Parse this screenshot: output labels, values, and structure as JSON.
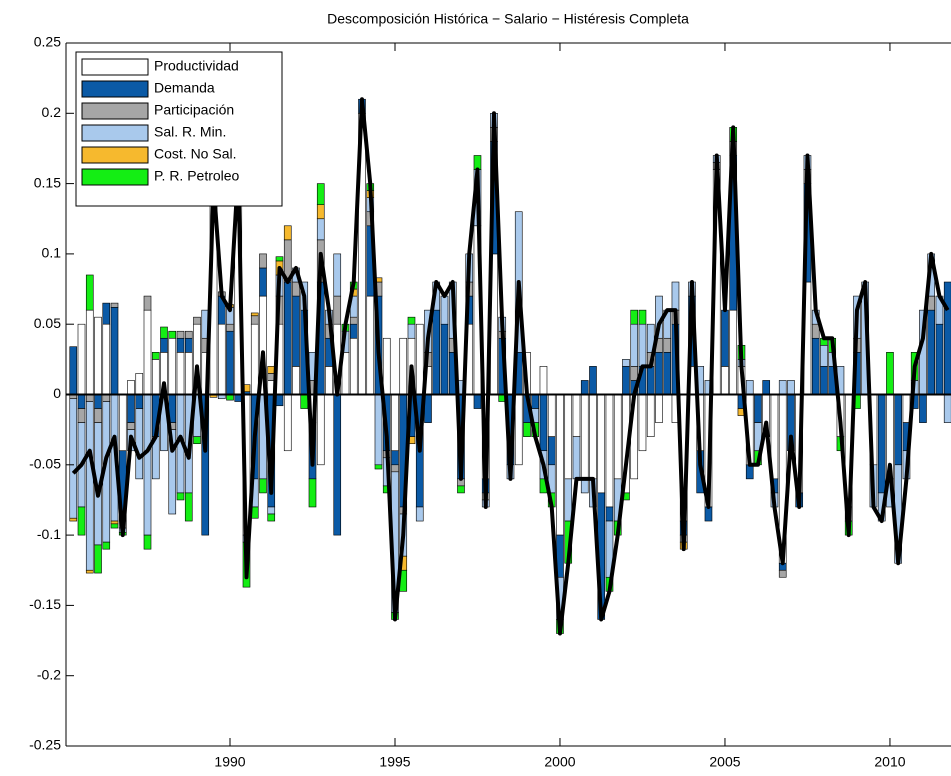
{
  "chart_data": {
    "type": "stacked-bar-line",
    "title": "Descomposición Histórica − Salario − Histéresis Completa",
    "x": [
      1985.25,
      1985.5,
      1985.75,
      1986,
      1986.25,
      1986.5,
      1986.75,
      1987,
      1987.25,
      1987.5,
      1987.75,
      1988,
      1988.25,
      1988.5,
      1988.75,
      1989,
      1989.25,
      1989.5,
      1989.75,
      1990,
      1990.25,
      1990.5,
      1990.75,
      1991,
      1991.25,
      1991.5,
      1991.75,
      1992,
      1992.25,
      1992.5,
      1992.75,
      1993,
      1993.25,
      1993.5,
      1993.75,
      1994,
      1994.25,
      1994.5,
      1994.75,
      1995,
      1995.25,
      1995.5,
      1995.75,
      1996,
      1996.25,
      1996.5,
      1996.75,
      1997,
      1997.25,
      1997.5,
      1997.75,
      1998,
      1998.25,
      1998.5,
      1998.75,
      1999,
      1999.25,
      1999.5,
      1999.75,
      2000,
      2000.25,
      2000.5,
      2000.75,
      2001,
      2001.25,
      2001.5,
      2001.75,
      2002,
      2002.25,
      2002.5,
      2002.75,
      2003,
      2003.25,
      2003.5,
      2003.75,
      2004,
      2004.25,
      2004.5,
      2004.75,
      2005,
      2005.25,
      2005.5,
      2005.75,
      2006,
      2006.25,
      2006.5,
      2006.75,
      2007,
      2007.25,
      2007.5,
      2007.75,
      2008,
      2008.25,
      2008.5,
      2008.75,
      2009,
      2009.25,
      2009.5,
      2009.75,
      2010,
      2010.25,
      2010.5,
      2010.75,
      2011,
      2011.25,
      2011.5,
      2011.75
    ],
    "series": [
      {
        "name": "Productividad",
        "color": "#ffffff",
        "values": [
          0.0,
          0.05,
          0.06,
          0.055,
          0.05,
          0.0,
          -0.04,
          0.01,
          0.015,
          0.06,
          0.025,
          0.03,
          0.04,
          0.03,
          0.03,
          0.05,
          0.03,
          0.14,
          0.05,
          0.0,
          0.16,
          -0.1,
          0.05,
          0.07,
          0.01,
          0.05,
          -0.04,
          0.02,
          0.0,
          -0.02,
          -0.05,
          0.02,
          0.05,
          0.03,
          0.04,
          0.2,
          0.07,
          0.0,
          0.04,
          -0.04,
          0.04,
          0.04,
          0.05,
          0.02,
          0.0,
          0.0,
          0.0,
          0.0,
          0.05,
          0.12,
          -0.06,
          0.1,
          0.0,
          0.0,
          -0.05,
          0.03,
          0.0,
          0.02,
          -0.03,
          -0.1,
          -0.06,
          -0.03,
          -0.06,
          -0.06,
          -0.07,
          -0.08,
          -0.06,
          -0.07,
          -0.06,
          -0.04,
          -0.03,
          -0.02,
          0.0,
          -0.02,
          -0.09,
          0.02,
          -0.04,
          -0.08,
          0.16,
          0.02,
          0.06,
          0.02,
          -0.05,
          0.0,
          -0.03,
          -0.06,
          -0.12,
          0.0,
          -0.07,
          0.08,
          0.0,
          0.0,
          0.0,
          -0.03,
          -0.08,
          0.0,
          0.0,
          -0.05,
          0.0,
          -0.06,
          0.0,
          -0.02,
          0.0,
          0.0,
          0.0,
          0.0,
          0.0
        ]
      },
      {
        "name": "Demanda",
        "color": "#0b5aa6",
        "values": [
          0.034,
          -0.01,
          0.0,
          -0.01,
          0.015,
          0.062,
          -0.05,
          -0.02,
          -0.01,
          0.0,
          -0.03,
          0.01,
          -0.02,
          0.01,
          0.01,
          0.0,
          -0.1,
          0.005,
          0.02,
          0.045,
          -0.005,
          0.002,
          -0.06,
          0.02,
          -0.08,
          -0.008,
          0.08,
          0.05,
          0.06,
          -0.04,
          0.08,
          0.02,
          -0.1,
          0.0,
          0.01,
          0.01,
          0.05,
          0.07,
          -0.04,
          -0.01,
          -0.08,
          -0.03,
          -0.08,
          -0.02,
          0.06,
          0.05,
          0.03,
          -0.06,
          0.02,
          -0.01,
          -0.01,
          0.08,
          0.04,
          -0.05,
          0.03,
          -0.02,
          -0.01,
          -0.04,
          -0.02,
          -0.03,
          0.0,
          0.0,
          0.01,
          0.02,
          -0.09,
          -0.01,
          0.0,
          0.02,
          0.01,
          0.02,
          0.02,
          0.03,
          0.03,
          0.05,
          -0.01,
          0.05,
          -0.03,
          -0.01,
          0.0,
          0.04,
          0.11,
          -0.01,
          -0.01,
          -0.02,
          0.01,
          -0.01,
          -0.005,
          -0.04,
          -0.01,
          0.07,
          0.04,
          0.02,
          0.02,
          0.0,
          0.0,
          0.03,
          0.0,
          0.0,
          -0.07,
          0.0,
          -0.05,
          -0.02,
          -0.01,
          -0.02,
          0.06,
          0.05,
          0.08
        ]
      },
      {
        "name": "Participación",
        "color": "#a6a6a6",
        "values": [
          -0.003,
          -0.01,
          -0.005,
          -0.01,
          -0.005,
          0.003,
          -0.005,
          -0.005,
          0.0,
          0.01,
          0.0,
          0.0,
          -0.005,
          0.005,
          0.005,
          0.005,
          0.01,
          0.005,
          0.003,
          0.005,
          0.0,
          0.0,
          0.006,
          0.01,
          0.005,
          0.02,
          0.03,
          0.01,
          0.0,
          0.01,
          0.03,
          0.01,
          0.02,
          0.0,
          0.005,
          0.0,
          0.01,
          0.01,
          -0.005,
          -0.005,
          -0.005,
          0.0,
          0.0,
          0.01,
          0.0,
          0.0,
          0.01,
          -0.005,
          0.01,
          0.0,
          -0.005,
          0.01,
          0.005,
          0.0,
          0.0,
          0.0,
          0.0,
          0.0,
          0.0,
          0.0,
          0.0,
          0.0,
          0.0,
          0.0,
          0.0,
          0.0,
          0.0,
          0.0,
          0.01,
          0.0,
          0.01,
          0.01,
          0.01,
          0.01,
          -0.005,
          0.0,
          0.0,
          0.0,
          0.005,
          0.0,
          0.01,
          0.0,
          0.0,
          0.0,
          0.0,
          0.0,
          -0.005,
          0.0,
          0.0,
          0.01,
          0.01,
          0.0,
          0.0,
          0.0,
          -0.01,
          0.01,
          0.0,
          0.0,
          0.0,
          0.0,
          0.0,
          0.0,
          0.0,
          0.0,
          0.01,
          0.0,
          0.0
        ]
      },
      {
        "name": "Sal. R. Min.",
        "color": "#a9c9ec",
        "values": [
          -0.085,
          -0.06,
          -0.12,
          -0.087,
          -0.1,
          -0.09,
          -0.003,
          -0.015,
          -0.05,
          -0.1,
          -0.03,
          -0.04,
          -0.06,
          -0.07,
          -0.07,
          -0.03,
          0.02,
          0.0,
          -0.003,
          0.012,
          0.005,
          -0.005,
          -0.02,
          -0.06,
          -0.005,
          0.015,
          0.0,
          0.01,
          0.02,
          0.02,
          0.015,
          0.01,
          0.03,
          0.015,
          0.015,
          0.0,
          0.01,
          -0.05,
          -0.02,
          -0.1,
          -0.03,
          0.01,
          -0.01,
          0.03,
          0.02,
          0.02,
          0.04,
          0.01,
          0.02,
          0.04,
          -0.005,
          0.01,
          0.01,
          -0.01,
          0.1,
          0.0,
          -0.01,
          -0.02,
          -0.02,
          -0.03,
          -0.03,
          -0.03,
          -0.01,
          -0.02,
          0.0,
          -0.04,
          -0.03,
          0.005,
          0.03,
          0.03,
          0.02,
          0.03,
          0.02,
          0.02,
          0.0,
          0.01,
          0.02,
          0.01,
          0.005,
          0.0,
          0.0,
          0.005,
          0.01,
          -0.02,
          0.0,
          -0.01,
          0.01,
          0.01,
          0.0,
          0.01,
          0.01,
          0.015,
          0.01,
          0.02,
          0.0,
          0.03,
          0.08,
          -0.03,
          -0.02,
          -0.02,
          -0.07,
          -0.02,
          0.01,
          0.06,
          0.03,
          0.02,
          -0.02
        ]
      },
      {
        "name": "Cost. No Sal.",
        "color": "#f6b92e",
        "values": [
          -0.002,
          0.0,
          -0.002,
          0.0,
          0.0,
          -0.002,
          0.0,
          0.0,
          0.0,
          0.0,
          0.0,
          0.0,
          0.0,
          0.0,
          0.0,
          0.0,
          0.0,
          -0.002,
          0.0,
          0.002,
          0.0,
          0.005,
          0.002,
          0.0,
          0.005,
          0.01,
          0.01,
          0.0,
          0.0,
          0.0,
          0.01,
          0.0,
          0.0,
          0.0,
          0.005,
          0.0,
          0.005,
          0.003,
          0.0,
          0.0,
          -0.01,
          -0.005,
          0.0,
          0.0,
          0.0,
          0.0,
          0.0,
          0.0,
          0.0,
          0.0,
          0.0,
          0.0,
          0.0,
          0.0,
          0.0,
          0.0,
          0.0,
          0.0,
          0.0,
          0.0,
          0.0,
          0.0,
          0.0,
          0.0,
          0.0,
          0.0,
          0.0,
          0.0,
          0.0,
          0.0,
          0.0,
          0.0,
          0.0,
          0.0,
          -0.005,
          0.0,
          0.0,
          0.0,
          0.0,
          0.0,
          0.0,
          -0.005,
          0.0,
          0.0,
          0.0,
          0.0,
          0.0,
          0.0,
          0.0,
          0.0,
          0.0,
          0.0,
          0.0,
          0.0,
          0.0,
          0.0,
          0.0,
          0.0,
          0.0,
          0.0,
          0.0,
          0.0,
          0.0,
          0.0,
          0.0,
          0.0,
          0.0
        ]
      },
      {
        "name": "P. R. Petroleo",
        "color": "#14ee14",
        "values": [
          0.0,
          -0.02,
          0.025,
          -0.02,
          -0.005,
          -0.003,
          -0.002,
          0.0,
          0.0,
          -0.01,
          0.005,
          0.008,
          0.005,
          -0.005,
          -0.02,
          -0.005,
          0.0,
          0.002,
          0.0,
          -0.004,
          0.0,
          -0.032,
          -0.008,
          -0.01,
          -0.005,
          0.003,
          0.0,
          0.0,
          -0.01,
          -0.02,
          0.015,
          0.0,
          0.0,
          0.005,
          0.005,
          0.0,
          0.005,
          -0.003,
          -0.005,
          -0.005,
          -0.015,
          0.005,
          0.0,
          0.0,
          0.0,
          0.0,
          0.0,
          -0.005,
          0.0,
          0.01,
          0.0,
          0.0,
          -0.005,
          0.0,
          0.0,
          -0.01,
          -0.01,
          -0.01,
          -0.01,
          -0.01,
          -0.03,
          0.0,
          0.0,
          0.0,
          0.0,
          -0.01,
          -0.01,
          -0.005,
          0.01,
          0.01,
          0.0,
          0.0,
          0.0,
          0.0,
          0.0,
          0.0,
          0.0,
          0.0,
          0.0,
          0.0,
          0.01,
          0.01,
          0.0,
          -0.01,
          0.0,
          0.0,
          0.0,
          0.0,
          0.0,
          0.0,
          0.0,
          0.005,
          0.01,
          -0.01,
          -0.01,
          -0.01,
          0.0,
          0.0,
          0.0,
          0.03,
          0.0,
          0.0,
          0.02,
          0.0,
          0.0,
          0.0,
          0.0
        ]
      }
    ],
    "line": {
      "color": "#000000",
      "values": [
        -0.056,
        -0.05,
        -0.04,
        -0.072,
        -0.045,
        -0.03,
        -0.1,
        -0.03,
        -0.045,
        -0.04,
        -0.03,
        0.008,
        -0.04,
        -0.03,
        -0.045,
        0.02,
        -0.04,
        0.15,
        0.07,
        0.06,
        0.16,
        -0.13,
        -0.03,
        0.03,
        -0.07,
        0.09,
        0.08,
        0.09,
        0.07,
        -0.05,
        0.1,
        0.06,
        0.0,
        0.05,
        0.08,
        0.21,
        0.15,
        0.03,
        -0.03,
        -0.16,
        -0.1,
        0.02,
        -0.04,
        0.04,
        0.08,
        0.07,
        0.08,
        -0.06,
        0.1,
        0.16,
        -0.08,
        0.2,
        0.05,
        -0.06,
        0.08,
        0.0,
        -0.03,
        -0.05,
        -0.08,
        -0.17,
        -0.12,
        -0.06,
        -0.06,
        -0.06,
        -0.16,
        -0.14,
        -0.1,
        -0.05,
        0.0,
        0.02,
        0.02,
        0.05,
        0.06,
        0.06,
        -0.11,
        0.08,
        -0.05,
        -0.08,
        0.17,
        0.06,
        0.19,
        0.02,
        -0.05,
        -0.05,
        -0.02,
        -0.08,
        -0.12,
        -0.03,
        -0.08,
        0.17,
        0.06,
        0.04,
        0.04,
        -0.02,
        -0.1,
        0.06,
        0.08,
        -0.08,
        -0.09,
        -0.05,
        -0.12,
        -0.06,
        0.02,
        0.04,
        0.1,
        0.07,
        0.06
      ]
    },
    "xlim": [
      1985.03,
      2011.85
    ],
    "xticks": [
      1990,
      1995,
      2000,
      2005,
      2010
    ],
    "ylim": [
      -0.25,
      0.25
    ],
    "yticks": [
      -0.25,
      -0.2,
      -0.15,
      -0.1,
      -0.05,
      0,
      0.05,
      0.1,
      0.15,
      0.2,
      0.25
    ],
    "legend": "upper-left"
  }
}
